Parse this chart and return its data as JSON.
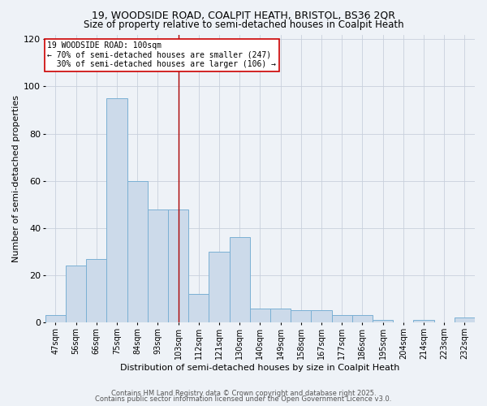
{
  "title1": "19, WOODSIDE ROAD, COALPIT HEATH, BRISTOL, BS36 2QR",
  "title2": "Size of property relative to semi-detached houses in Coalpit Heath",
  "xlabel": "Distribution of semi-detached houses by size in Coalpit Heath",
  "ylabel": "Number of semi-detached properties",
  "bin_labels": [
    "47sqm",
    "56sqm",
    "66sqm",
    "75sqm",
    "84sqm",
    "93sqm",
    "103sqm",
    "112sqm",
    "121sqm",
    "130sqm",
    "140sqm",
    "149sqm",
    "158sqm",
    "167sqm",
    "177sqm",
    "186sqm",
    "195sqm",
    "204sqm",
    "214sqm",
    "223sqm",
    "232sqm"
  ],
  "heights": [
    3,
    24,
    27,
    95,
    60,
    48,
    48,
    12,
    30,
    36,
    6,
    6,
    5,
    5,
    3,
    3,
    1,
    0,
    1,
    0,
    2
  ],
  "bar_color": "#ccdaea",
  "bar_edge_color": "#7ab0d4",
  "property_size_bin": 6,
  "vline_x": 6.0,
  "vline_color": "#aa0000",
  "annotation_text": "19 WOODSIDE ROAD: 100sqm\n← 70% of semi-detached houses are smaller (247)\n  30% of semi-detached houses are larger (106) →",
  "annotation_box_color": "white",
  "annotation_box_edge": "#cc0000",
  "ylim": [
    0,
    122
  ],
  "yticks": [
    0,
    20,
    40,
    60,
    80,
    100,
    120
  ],
  "footer1": "Contains HM Land Registry data © Crown copyright and database right 2025.",
  "footer2": "Contains public sector information licensed under the Open Government Licence v3.0.",
  "bg_color": "#eef2f7",
  "plot_bg_color": "#eef2f7",
  "grid_color": "#c8d0dc",
  "title_fontsize": 9,
  "subtitle_fontsize": 8.5,
  "label_fontsize": 8,
  "tick_fontsize": 7,
  "footer_fontsize": 6
}
